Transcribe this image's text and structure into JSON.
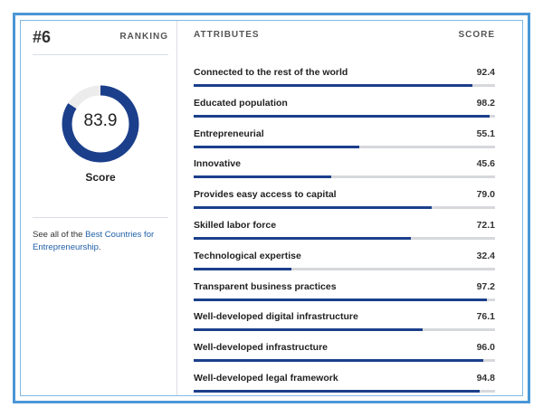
{
  "colors": {
    "accent": "#1b3f8b",
    "track": "#d6d8dc",
    "frame": "#4a97d6",
    "link": "#1f5fa8"
  },
  "summary": {
    "rank": "#6",
    "rank_label": "RANKING",
    "score_value": "83.9",
    "score_fraction": 0.839,
    "score_label": "Score",
    "see_all_prefix": "See all of the ",
    "see_all_link": "Best Countries for Entrepreneurship",
    "see_all_suffix": "."
  },
  "attributes_table": {
    "header_attributes": "ATTRIBUTES",
    "header_score": "SCORE",
    "rows": [
      {
        "name": "Connected to the rest of the world",
        "score": "92.4",
        "value": 92.4
      },
      {
        "name": "Educated population",
        "score": "98.2",
        "value": 98.2
      },
      {
        "name": "Entrepreneurial",
        "score": "55.1",
        "value": 55.1
      },
      {
        "name": "Innovative",
        "score": "45.6",
        "value": 45.6
      },
      {
        "name": "Provides easy access to capital",
        "score": "79.0",
        "value": 79.0
      },
      {
        "name": "Skilled labor force",
        "score": "72.1",
        "value": 72.1
      },
      {
        "name": "Technological expertise",
        "score": "32.4",
        "value": 32.4
      },
      {
        "name": "Transparent business practices",
        "score": "97.2",
        "value": 97.2
      },
      {
        "name": "Well-developed digital infrastructure",
        "score": "76.1",
        "value": 76.1
      },
      {
        "name": "Well-developed infrastructure",
        "score": "96.0",
        "value": 96.0
      },
      {
        "name": "Well-developed legal framework",
        "score": "94.8",
        "value": 94.8
      }
    ]
  }
}
